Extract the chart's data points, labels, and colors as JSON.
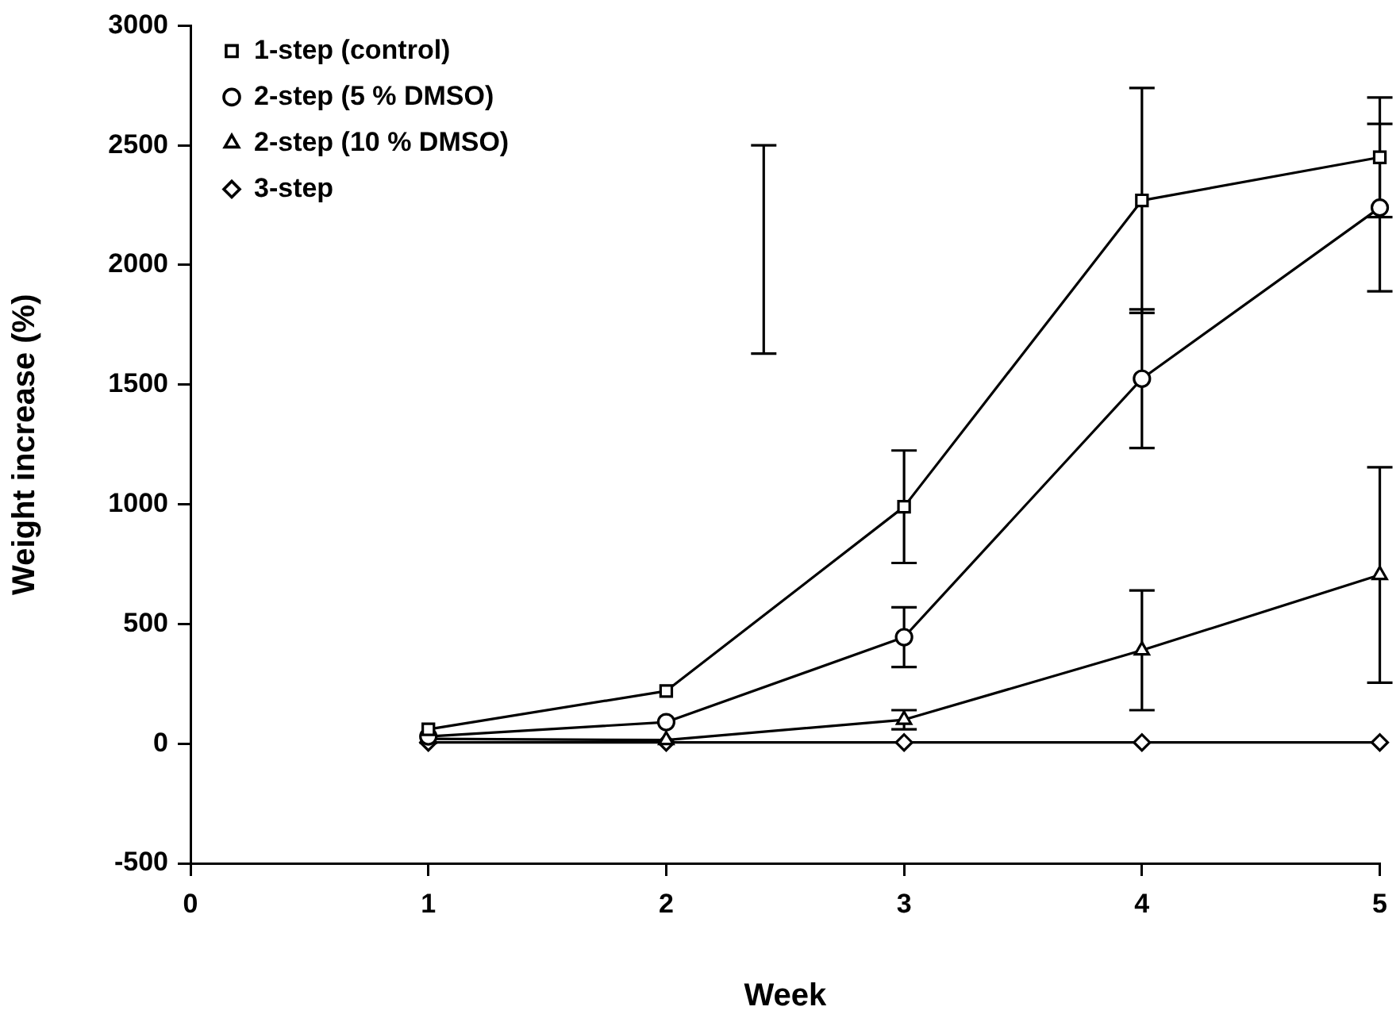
{
  "chart_data": {
    "type": "line",
    "xlabel": "Week",
    "ylabel": "Weight increase (%)",
    "x": [
      1,
      2,
      3,
      4,
      5
    ],
    "xlim": [
      0,
      5
    ],
    "xticks": [
      0,
      1,
      2,
      3,
      4,
      5
    ],
    "ylim": [
      -500,
      3000
    ],
    "yticks": [
      -500,
      0,
      500,
      1000,
      1500,
      2000,
      2500,
      3000
    ],
    "grid": false,
    "legend": "top left",
    "line_style": "solid",
    "series": [
      {
        "name": "1-step (control)",
        "color": "#000000",
        "marker": "square",
        "values": [
          60,
          220,
          990,
          2270,
          2450
        ],
        "errors": [
          null,
          null,
          235,
          470,
          250
        ]
      },
      {
        "name": "2-step (5 % DMSO)",
        "color": "#000000",
        "marker": "circle",
        "values": [
          30,
          90,
          445,
          1525,
          2240
        ],
        "errors": [
          null,
          null,
          125,
          290,
          350
        ]
      },
      {
        "name": "2-step (10 % DMSO)",
        "color": "#000000",
        "marker": "triangle",
        "values": [
          20,
          15,
          100,
          390,
          705
        ],
        "errors": [
          null,
          null,
          40,
          250,
          450
        ]
      },
      {
        "name": "3-step",
        "color": "#000000",
        "marker": "diamond",
        "values": [
          5,
          5,
          5,
          5,
          5
        ]
      },
      {
        "color": "#000000",
        "marker": "none",
        "x": [
          2.41,
          2.41
        ],
        "values": [
          1630,
          2500
        ],
        "errors": [
          0,
          0
        ]
      }
    ]
  }
}
